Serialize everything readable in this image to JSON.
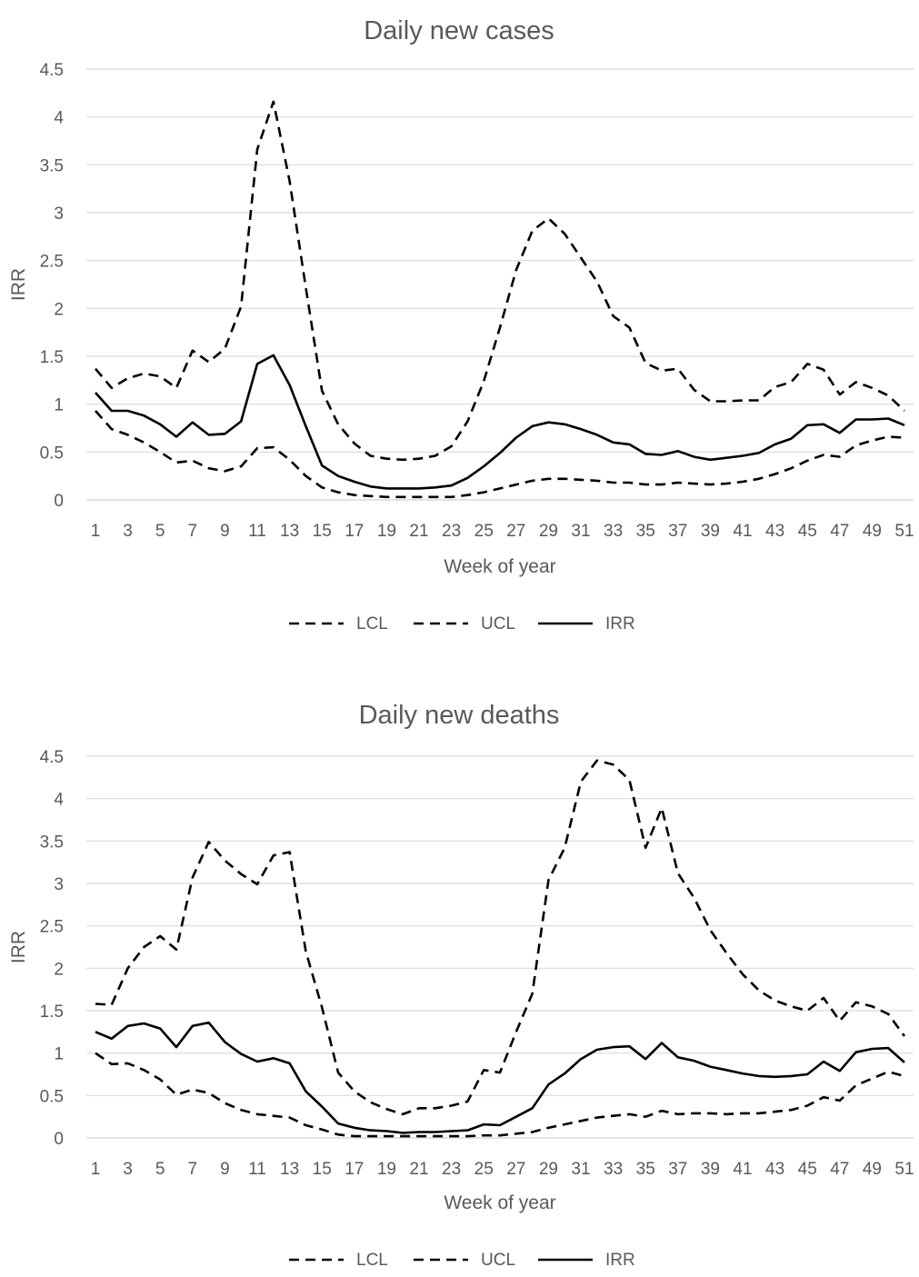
{
  "chart_data": [
    {
      "type": "line",
      "title": "Daily new cases",
      "xlabel": "Week of year",
      "ylabel": "IRR",
      "ylim": [
        0,
        4.5
      ],
      "yticks": [
        "0",
        "0.5",
        "1",
        "1.5",
        "2",
        "2.5",
        "3",
        "3.5",
        "4",
        "4.5"
      ],
      "xticks": [
        "1",
        "3",
        "5",
        "7",
        "9",
        "11",
        "13",
        "15",
        "17",
        "19",
        "21",
        "23",
        "25",
        "27",
        "29",
        "31",
        "33",
        "35",
        "37",
        "39",
        "41",
        "43",
        "45",
        "47",
        "49",
        "51"
      ],
      "grid": true,
      "legend": "bottom",
      "x": [
        1,
        2,
        3,
        4,
        5,
        6,
        7,
        8,
        9,
        10,
        11,
        12,
        13,
        14,
        15,
        16,
        17,
        18,
        19,
        20,
        21,
        22,
        23,
        24,
        25,
        26,
        27,
        28,
        29,
        30,
        31,
        32,
        33,
        34,
        35,
        36,
        37,
        38,
        39,
        40,
        41,
        42,
        43,
        44,
        45,
        46,
        47,
        48,
        49,
        50,
        51
      ],
      "series": [
        {
          "name": "LCL",
          "style": "dashed",
          "values": [
            0.93,
            0.74,
            0.68,
            0.6,
            0.5,
            0.39,
            0.41,
            0.33,
            0.3,
            0.35,
            0.54,
            0.55,
            0.42,
            0.25,
            0.13,
            0.08,
            0.05,
            0.04,
            0.03,
            0.03,
            0.03,
            0.03,
            0.03,
            0.05,
            0.08,
            0.12,
            0.16,
            0.2,
            0.22,
            0.22,
            0.21,
            0.2,
            0.18,
            0.18,
            0.16,
            0.16,
            0.18,
            0.17,
            0.16,
            0.17,
            0.19,
            0.22,
            0.27,
            0.33,
            0.41,
            0.47,
            0.45,
            0.57,
            0.62,
            0.66,
            0.65
          ]
        },
        {
          "name": "UCL",
          "style": "dashed",
          "values": [
            1.37,
            1.17,
            1.27,
            1.32,
            1.29,
            1.17,
            1.56,
            1.44,
            1.58,
            2.02,
            3.66,
            4.16,
            3.33,
            2.22,
            1.14,
            0.79,
            0.59,
            0.46,
            0.43,
            0.42,
            0.43,
            0.46,
            0.56,
            0.82,
            1.24,
            1.8,
            2.4,
            2.81,
            2.94,
            2.78,
            2.53,
            2.28,
            1.92,
            1.8,
            1.43,
            1.35,
            1.37,
            1.15,
            1.03,
            1.03,
            1.04,
            1.04,
            1.18,
            1.23,
            1.42,
            1.36,
            1.1,
            1.23,
            1.17,
            1.09,
            0.93
          ]
        },
        {
          "name": "IRR",
          "style": "solid",
          "values": [
            1.12,
            0.93,
            0.93,
            0.88,
            0.79,
            0.66,
            0.81,
            0.68,
            0.69,
            0.82,
            1.42,
            1.51,
            1.2,
            0.77,
            0.36,
            0.25,
            0.19,
            0.14,
            0.12,
            0.12,
            0.12,
            0.13,
            0.15,
            0.23,
            0.35,
            0.49,
            0.65,
            0.77,
            0.81,
            0.79,
            0.74,
            0.68,
            0.6,
            0.58,
            0.48,
            0.47,
            0.51,
            0.45,
            0.42,
            0.44,
            0.46,
            0.49,
            0.58,
            0.64,
            0.78,
            0.79,
            0.7,
            0.84,
            0.84,
            0.85,
            0.78
          ]
        }
      ]
    },
    {
      "type": "line",
      "title": "Daily new deaths",
      "xlabel": "Week of year",
      "ylabel": "IRR",
      "ylim": [
        0,
        4.5
      ],
      "yticks": [
        "0",
        "0.5",
        "1",
        "1.5",
        "2",
        "2.5",
        "3",
        "3.5",
        "4",
        "4.5"
      ],
      "xticks": [
        "1",
        "3",
        "5",
        "7",
        "9",
        "11",
        "13",
        "15",
        "17",
        "19",
        "21",
        "23",
        "25",
        "27",
        "29",
        "31",
        "33",
        "35",
        "37",
        "39",
        "41",
        "43",
        "45",
        "47",
        "49",
        "51"
      ],
      "grid": true,
      "legend": "bottom",
      "x": [
        1,
        2,
        3,
        4,
        5,
        6,
        7,
        8,
        9,
        10,
        11,
        12,
        13,
        14,
        15,
        16,
        17,
        18,
        19,
        20,
        21,
        22,
        23,
        24,
        25,
        26,
        27,
        28,
        29,
        30,
        31,
        32,
        33,
        34,
        35,
        36,
        37,
        38,
        39,
        40,
        41,
        42,
        43,
        44,
        45,
        46,
        47,
        48,
        49,
        50,
        51
      ],
      "series": [
        {
          "name": "LCL",
          "style": "dashed",
          "values": [
            1.0,
            0.87,
            0.88,
            0.8,
            0.69,
            0.51,
            0.57,
            0.53,
            0.41,
            0.33,
            0.28,
            0.26,
            0.24,
            0.15,
            0.1,
            0.04,
            0.02,
            0.02,
            0.02,
            0.02,
            0.02,
            0.02,
            0.02,
            0.02,
            0.03,
            0.03,
            0.05,
            0.07,
            0.12,
            0.16,
            0.2,
            0.24,
            0.26,
            0.28,
            0.25,
            0.32,
            0.28,
            0.29,
            0.29,
            0.28,
            0.29,
            0.29,
            0.31,
            0.33,
            0.38,
            0.48,
            0.44,
            0.62,
            0.7,
            0.78,
            0.73
          ]
        },
        {
          "name": "UCL",
          "style": "dashed",
          "values": [
            1.58,
            1.57,
            2.0,
            2.25,
            2.38,
            2.22,
            3.07,
            3.49,
            3.27,
            3.11,
            2.99,
            3.33,
            3.37,
            2.2,
            1.54,
            0.77,
            0.55,
            0.42,
            0.34,
            0.28,
            0.35,
            0.35,
            0.38,
            0.43,
            0.8,
            0.77,
            1.25,
            1.7,
            3.04,
            3.42,
            4.2,
            4.45,
            4.4,
            4.22,
            3.42,
            3.89,
            3.12,
            2.83,
            2.45,
            2.18,
            1.93,
            1.74,
            1.62,
            1.55,
            1.5,
            1.65,
            1.38,
            1.6,
            1.55,
            1.46,
            1.2
          ]
        },
        {
          "name": "IRR",
          "style": "solid",
          "values": [
            1.25,
            1.17,
            1.32,
            1.35,
            1.29,
            1.07,
            1.32,
            1.36,
            1.13,
            0.99,
            0.9,
            0.94,
            0.88,
            0.55,
            0.37,
            0.17,
            0.12,
            0.09,
            0.08,
            0.06,
            0.07,
            0.07,
            0.08,
            0.09,
            0.16,
            0.15,
            0.25,
            0.35,
            0.63,
            0.76,
            0.93,
            1.04,
            1.07,
            1.08,
            0.93,
            1.12,
            0.95,
            0.91,
            0.84,
            0.8,
            0.76,
            0.73,
            0.72,
            0.73,
            0.75,
            0.9,
            0.79,
            1.01,
            1.05,
            1.06,
            0.89
          ]
        }
      ]
    }
  ]
}
